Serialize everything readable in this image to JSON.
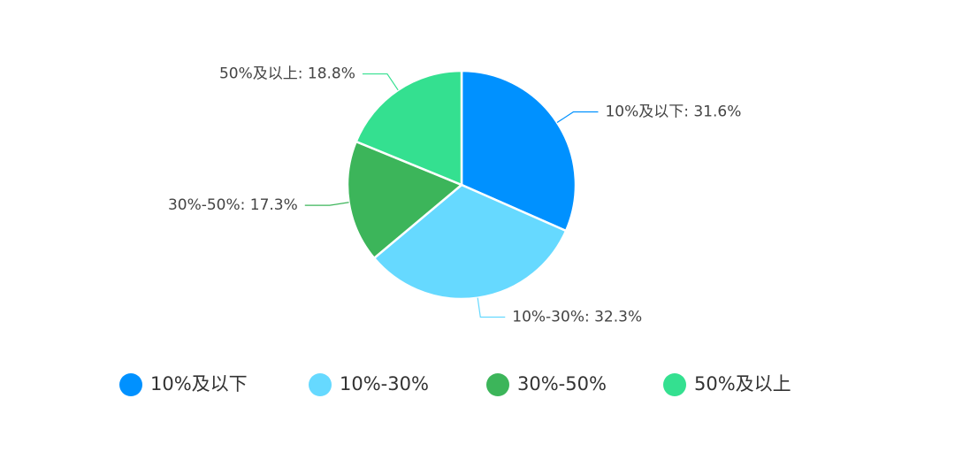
{
  "chart_data": {
    "type": "pie",
    "categories": [
      "10%及以下",
      "10%-30%",
      "30%-50%",
      "50%及以上"
    ],
    "values": [
      31.6,
      32.3,
      17.3,
      18.8
    ],
    "value_labels": [
      "10%及以下: 31.6%",
      "10%-30%: 32.3%",
      "30%-50%: 17.3%",
      "50%及以上: 18.8%"
    ],
    "colors": [
      "#0091ff",
      "#66d9ff",
      "#3cb55a",
      "#34e090"
    ],
    "legend": "bottom"
  }
}
